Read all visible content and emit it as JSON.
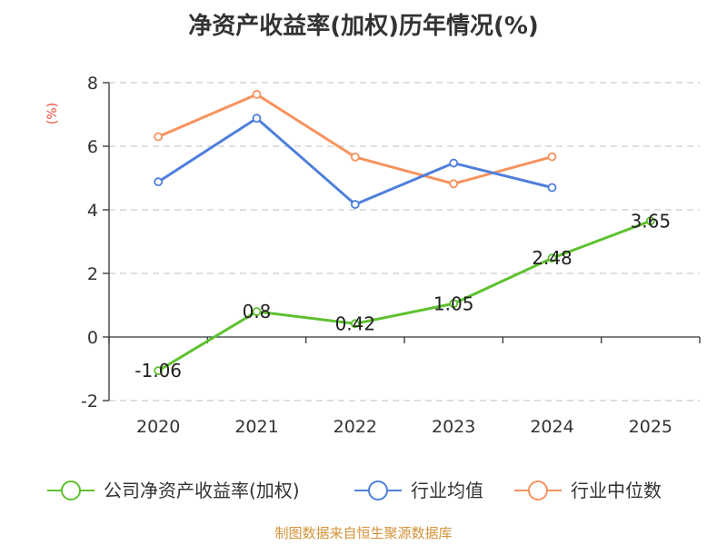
{
  "chart_data": {
    "type": "line",
    "title": "净资产收益率(加权)历年情况(%)",
    "ylabel": "(%)",
    "xlabel": "",
    "categories": [
      "2020",
      "2021",
      "2022",
      "2023",
      "2024",
      "2025"
    ],
    "ylim": [
      -2,
      8
    ],
    "yticks": [
      "-2",
      "0",
      "2",
      "4",
      "6",
      "8"
    ],
    "grid": true,
    "legend_position": "bottom",
    "series": [
      {
        "name": "公司净资产收益率(加权)",
        "color": "#5ec12f",
        "values": [
          -1.06,
          0.8,
          0.42,
          1.05,
          2.48,
          3.65
        ],
        "labels": [
          "-1.06",
          "0.8",
          "0.42",
          "1.05",
          "2.48",
          "3.65"
        ]
      },
      {
        "name": "行业均值",
        "color": "#4e7fdb",
        "values": [
          4.88,
          6.88,
          4.17,
          5.47,
          4.7,
          null
        ]
      },
      {
        "name": "行业中位数",
        "color": "#f7925e",
        "values": [
          6.3,
          7.63,
          5.66,
          4.82,
          5.67,
          null
        ]
      }
    ],
    "source": "制图数据来自恒生聚源数据库",
    "colors": {
      "unit": "#e84c3d",
      "source": "#d4933a",
      "grid": "#cccccc",
      "axis": "#333333"
    }
  }
}
